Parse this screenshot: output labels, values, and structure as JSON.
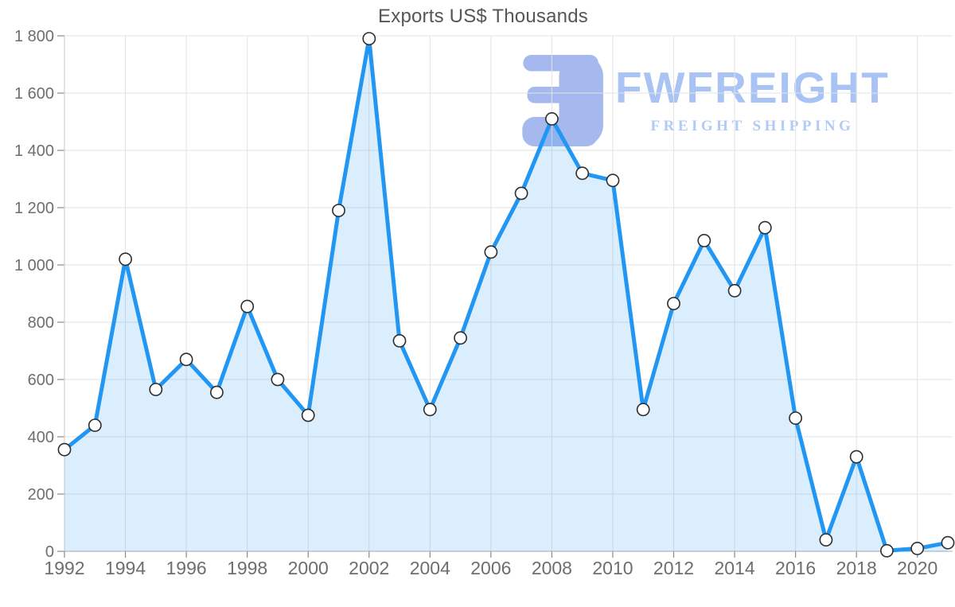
{
  "chart_data": {
    "type": "area",
    "title": "Exports US$ Thousands",
    "xlabel": "",
    "ylabel": "",
    "x": [
      1992,
      1993,
      1994,
      1995,
      1996,
      1997,
      1998,
      1999,
      2000,
      2001,
      2002,
      2003,
      2004,
      2005,
      2006,
      2007,
      2008,
      2009,
      2010,
      2011,
      2012,
      2013,
      2014,
      2015,
      2016,
      2017,
      2018,
      2019,
      2020,
      2021
    ],
    "values": [
      355,
      440,
      1020,
      565,
      670,
      555,
      855,
      600,
      475,
      1190,
      1790,
      735,
      495,
      745,
      1045,
      1250,
      1510,
      1320,
      1295,
      495,
      865,
      1085,
      910,
      1130,
      465,
      40,
      330,
      2,
      10,
      30
    ],
    "ylim": [
      0,
      1800
    ],
    "y_tick_step": 200,
    "y_tick_labels": [
      "0",
      "200",
      "400",
      "600",
      "800",
      "1 000",
      "1 200",
      "1 400",
      "1 600",
      "1 800"
    ],
    "x_label_step": 2,
    "x_label_start": 1992,
    "x_label_end": 2020,
    "grid": true,
    "legend_position": "none",
    "marker": "circle"
  },
  "watermark": {
    "brand": "FWFREIGHT",
    "tagline": "FREIGHT SHIPPING"
  },
  "colors": {
    "line": "#2196F3",
    "area_fill": "#2196F3",
    "area_opacity": 0.16,
    "marker_fill": "#FFFFFF",
    "marker_stroke": "#2E2E2E",
    "grid": "#E3E3E3",
    "axis_vertical": "#C9C9C9",
    "axis_baseline": "#ABABAB",
    "tick": "#8A8A8A",
    "axis_label": "#6E6E6E",
    "title": "#565656",
    "logo_icon": "#A5B9EE",
    "logo_text": "#A9C3F5",
    "logo_tagline": "#B2CAF6"
  }
}
